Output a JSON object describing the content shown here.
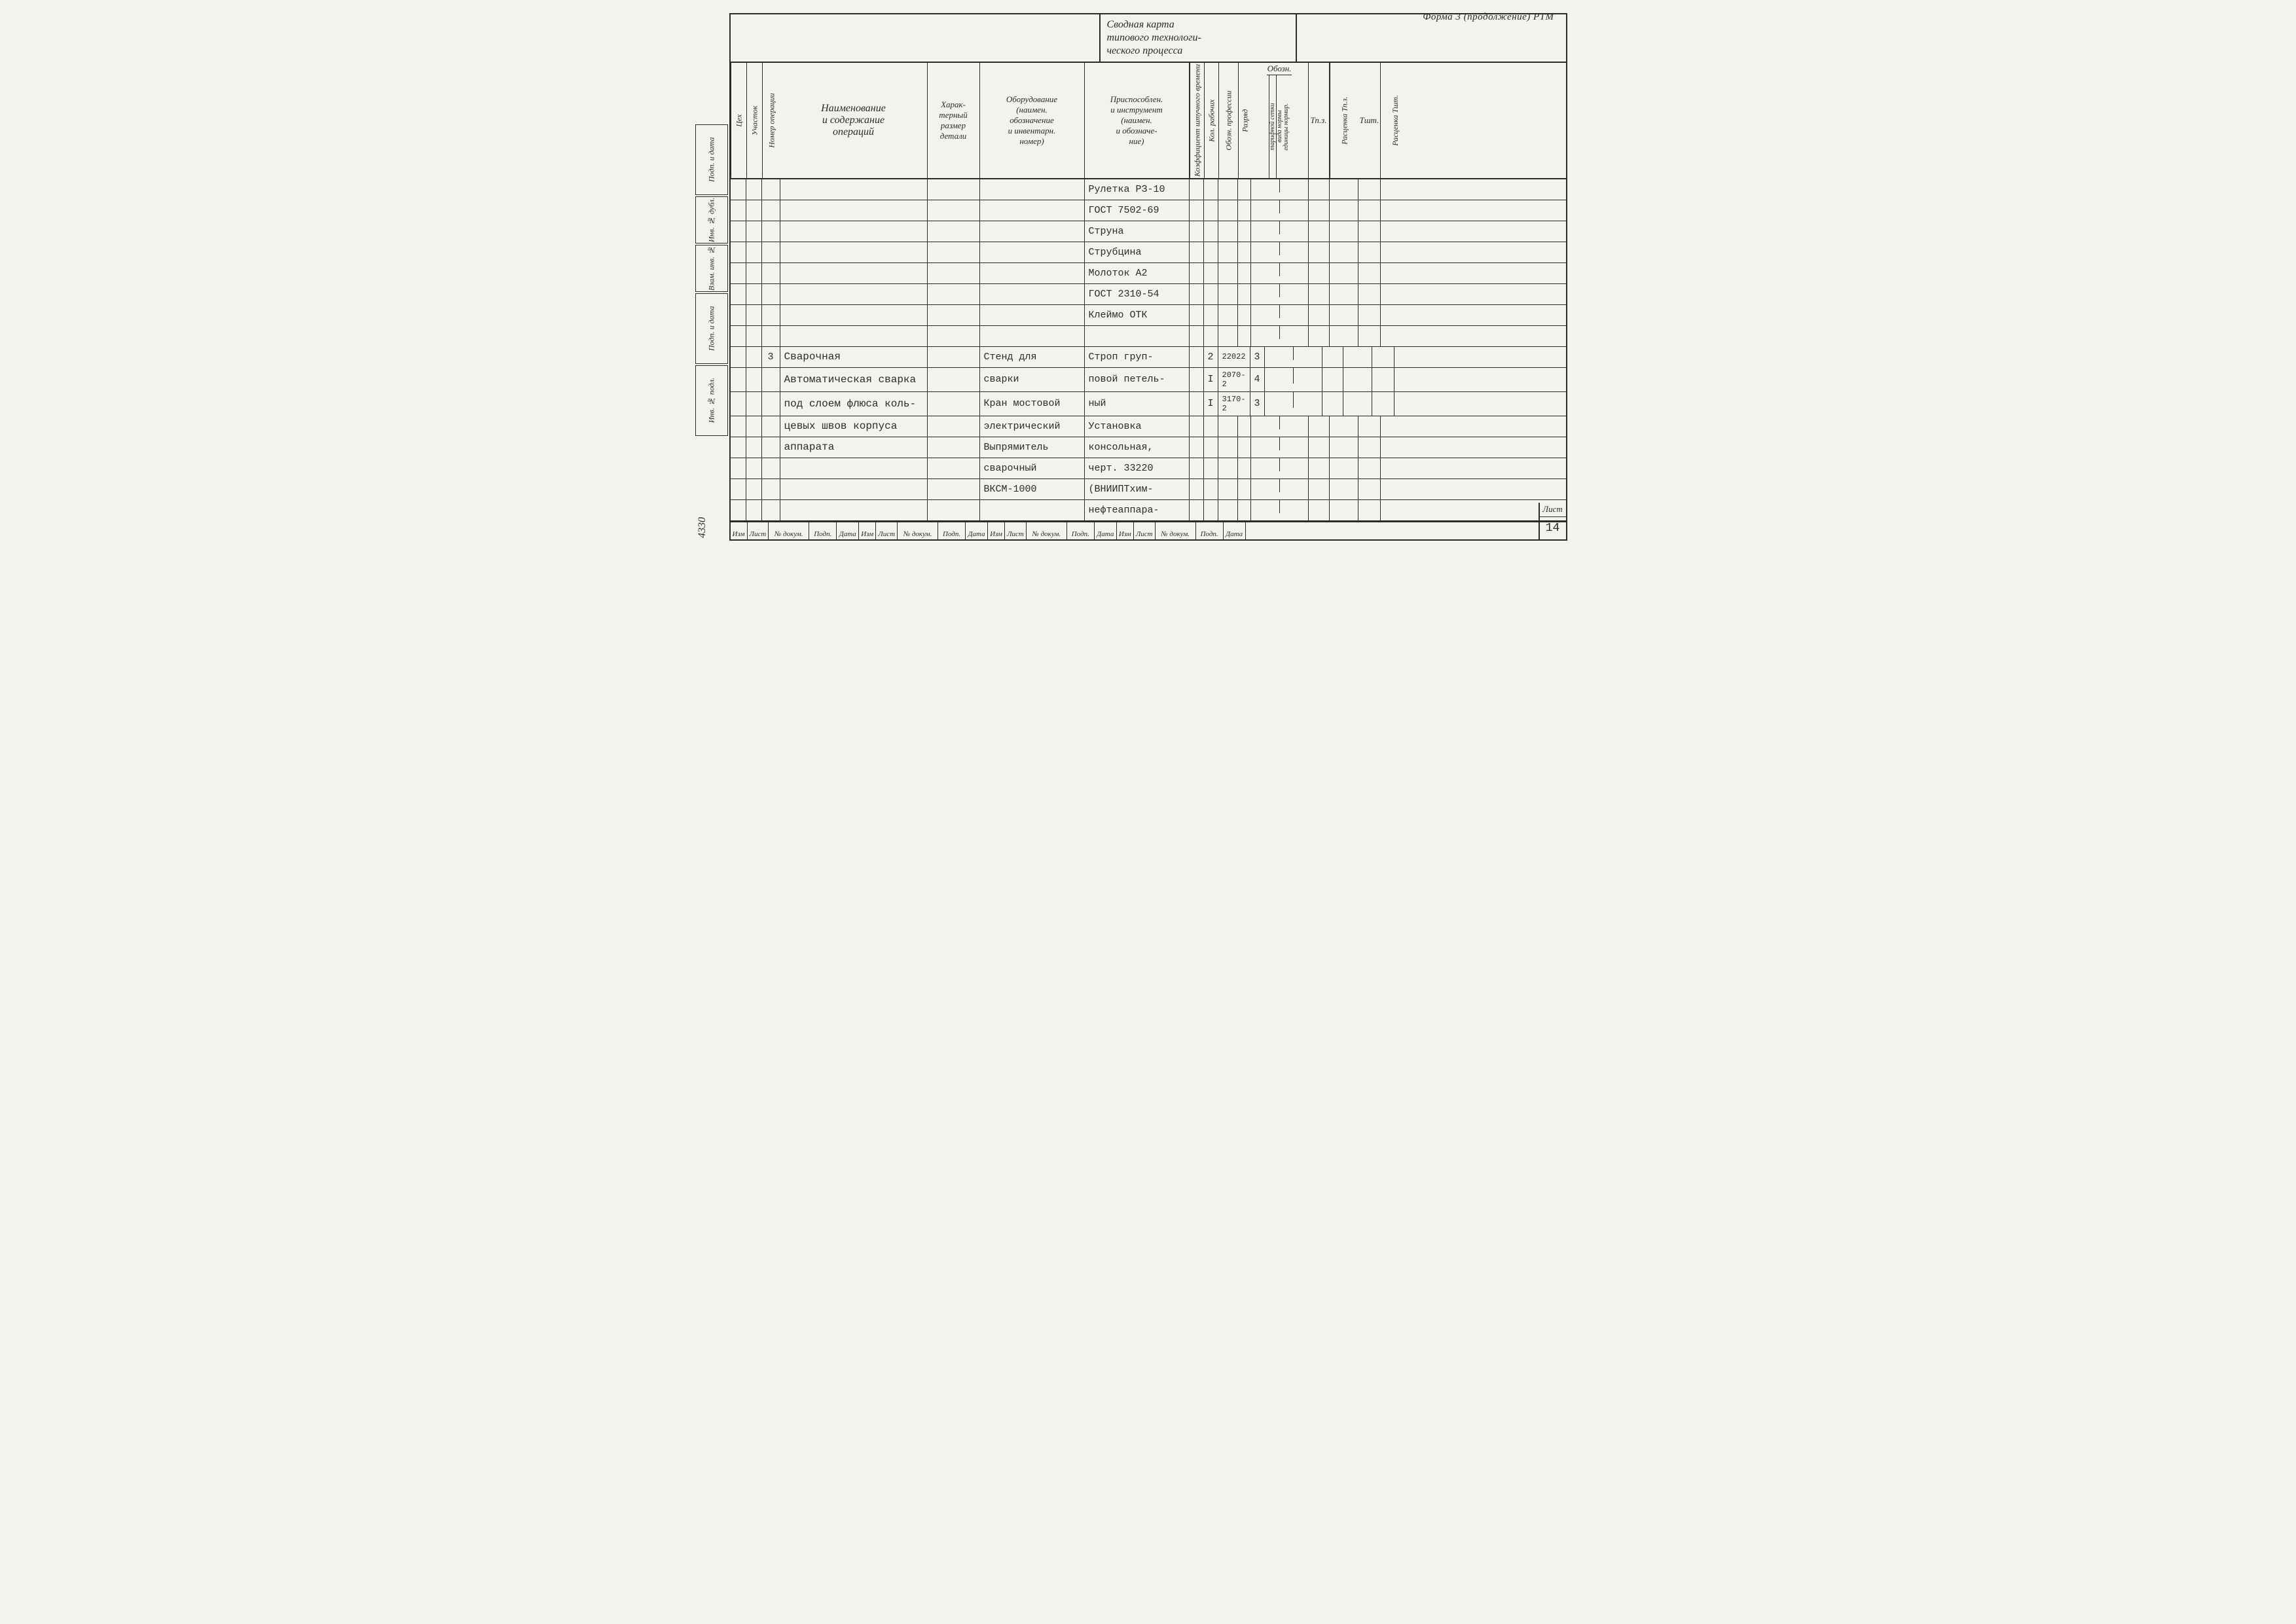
{
  "form_label": "Форма 3  (продолжение) РТМ",
  "title_block": "Сводная   карта\nтипового  технологи-\nческого  процесса",
  "columns": {
    "tsex": "Цех",
    "uch": "Участок",
    "nop": "Номер операции",
    "name": "Наименование\nи содержание\nопераций",
    "razmer": "Харак-\nтерный\nразмер\nдетали",
    "oborud": "Оборудование\n(наимен.\nобозначение\nи инвентарн.\nномер)",
    "prisp": "Приспособлен.\nи инструмент\n(наимен.\nи обозначе-\nние)",
    "koef": "Коэффициент штучного времени",
    "kolrab": "Кол. рабочих",
    "obozprof": "Обозн. профессии",
    "razryad": "Разряд",
    "oboz_group": "Обозн.",
    "oboz_tar": "тарифной сетки",
    "oboz_vid": "вида нормы",
    "oboz_ed": "единицы нормир.",
    "tpz": "Тп.з.",
    "ras1": "Расценка Тп.з.",
    "tsht": "Тшт.",
    "ras2": "Расценка Тшт."
  },
  "rows": [
    {
      "prisp": "Рулетка РЗ-10"
    },
    {
      "prisp": "ГОСТ 7502-69"
    },
    {
      "prisp": "Струна"
    },
    {
      "prisp": "Струбцина"
    },
    {
      "prisp": "Молоток А2"
    },
    {
      "prisp": "ГОСТ 2310-54"
    },
    {
      "prisp": "Клеймо ОТК"
    },
    {
      "prisp": ""
    },
    {
      "nop": "3",
      "name": "Сварочная",
      "oborud": "Стенд для",
      "prisp": "Строп груп-",
      "kolrab": "2",
      "obozprof": "22022",
      "razryad": "3"
    },
    {
      "name": "Автоматическая сварка",
      "oborud": "сварки",
      "prisp": "повой петель-",
      "kolrab": "I",
      "obozprof": "2070-2",
      "razryad": "4"
    },
    {
      "name": "под слоем флюса коль-",
      "oborud": "Кран мостовой",
      "prisp": "ный",
      "kolrab": "I",
      "obozprof": "3170-2",
      "razryad": "3"
    },
    {
      "name": "цевых швов корпуса",
      "oborud": "электрический",
      "prisp": "Установка"
    },
    {
      "name": "аппарата",
      "oborud": "Выпрямитель",
      "prisp": "консольная,"
    },
    {
      "oborud": "сварочный",
      "prisp": "черт. 33220"
    },
    {
      "oborud": "ВКСМ-1000",
      "prisp": "(ВНИИПТхим-"
    },
    {
      "prisp": "нефтеаппара-"
    }
  ],
  "side_stubs": [
    "Подп. и дата",
    "Инв. № дубл.",
    "Взам. инв. №",
    "Подп. и дата",
    "Инв. № подл."
  ],
  "rev_labels": [
    "Изм",
    "Лист",
    "№ докум.",
    "Подп.",
    "Дата",
    "Изм",
    "Лист",
    "№ докум.",
    "Подп.",
    "Дата",
    "Изм",
    "Лист",
    "№ докум.",
    "Подп.",
    "Дата",
    "Изм",
    "Лист",
    "№ докум.",
    "Подп.",
    "Дата"
  ],
  "sheet_label": "Лист",
  "sheet_num": "14",
  "doc_num": "4330"
}
